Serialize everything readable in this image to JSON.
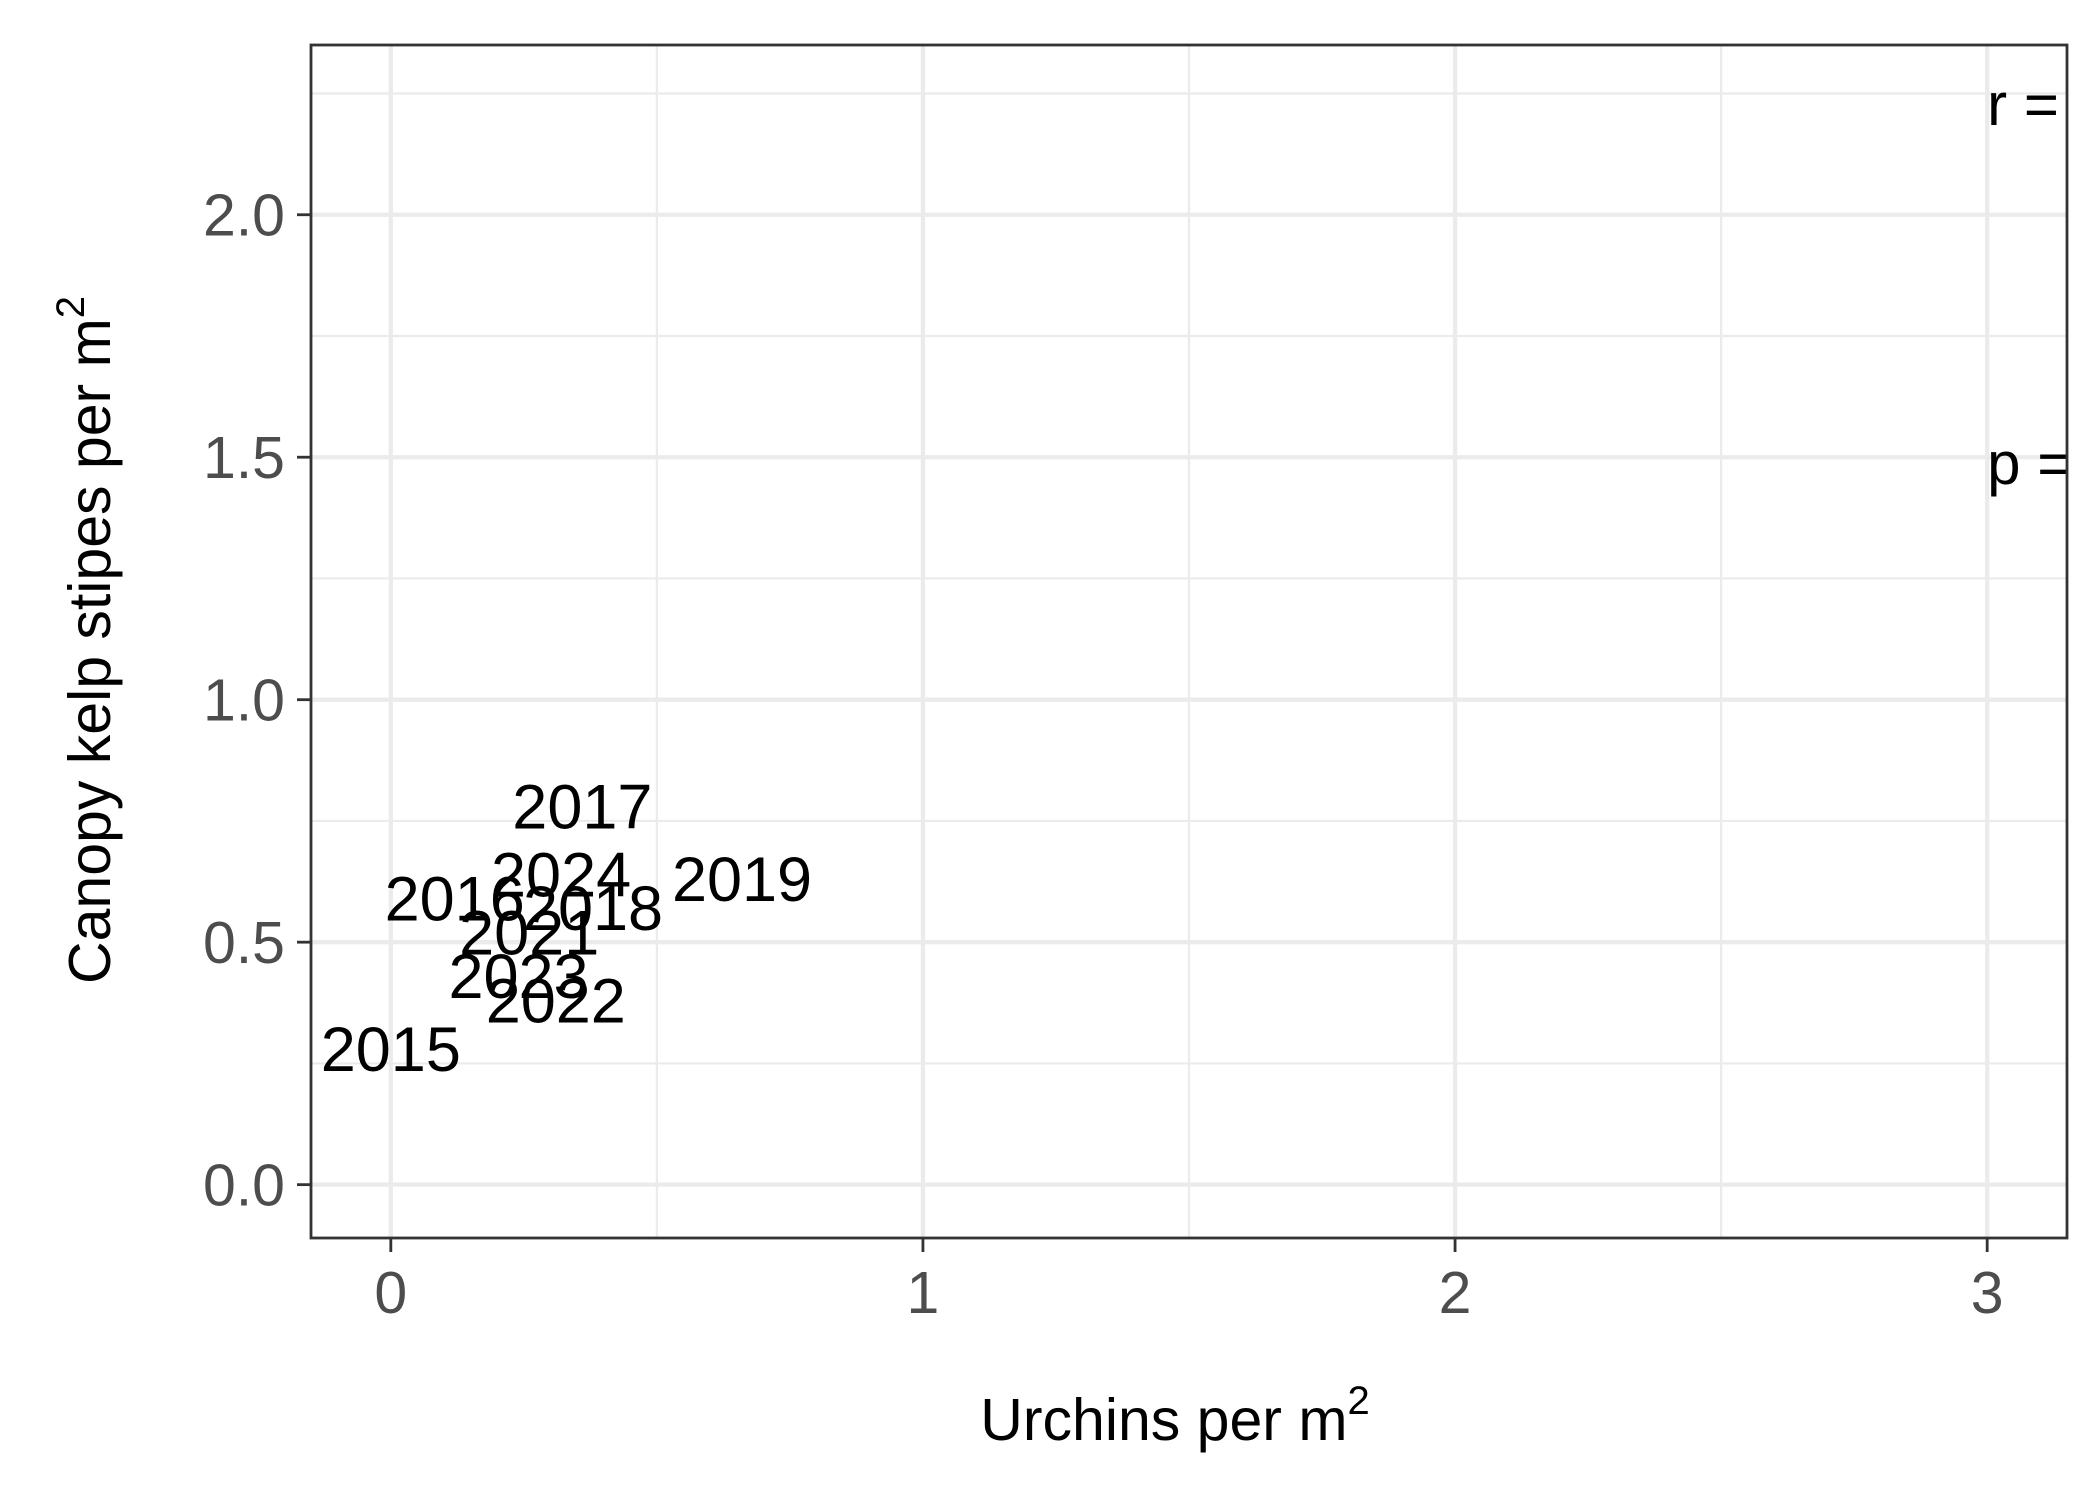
{
  "chart_data": {
    "type": "scatter",
    "title": "",
    "xlabel": "Urchins per m",
    "xlabel_sup": "2",
    "ylabel": "Canopy kelp stipes per m",
    "ylabel_sup": "2",
    "xlim": [
      -0.15,
      3.15
    ],
    "ylim": [
      -0.11,
      2.35
    ],
    "x_ticks": [
      0,
      1,
      2,
      3
    ],
    "x_tick_labels": [
      "0",
      "1",
      "2",
      "3"
    ],
    "x_minor_ticks": [
      0.5,
      1.5,
      2.5
    ],
    "y_ticks": [
      0.0,
      0.5,
      1.0,
      1.5,
      2.0
    ],
    "y_tick_labels": [
      "0.0",
      "0.5",
      "1.0",
      "1.5",
      "2.0"
    ],
    "y_minor_ticks": [
      0.25,
      0.75,
      1.25,
      1.75,
      2.25
    ],
    "grid": true,
    "points": [
      {
        "label": "2015",
        "x": 0.0,
        "y": 0.28
      },
      {
        "label": "2016",
        "x": 0.12,
        "y": 0.59
      },
      {
        "label": "2017",
        "x": 0.36,
        "y": 0.78
      },
      {
        "label": "2018",
        "x": 0.38,
        "y": 0.57
      },
      {
        "label": "2019",
        "x": 0.66,
        "y": 0.63
      },
      {
        "label": "2021",
        "x": 0.26,
        "y": 0.52
      },
      {
        "label": "2022",
        "x": 0.31,
        "y": 0.38
      },
      {
        "label": "2023",
        "x": 0.24,
        "y": 0.43
      },
      {
        "label": "2024",
        "x": 0.32,
        "y": 0.64
      }
    ],
    "annotations": [
      {
        "text": "r = ",
        "x": 3.0,
        "y": 2.23
      },
      {
        "text": "p = ",
        "x": 3.0,
        "y": 1.49
      }
    ]
  }
}
